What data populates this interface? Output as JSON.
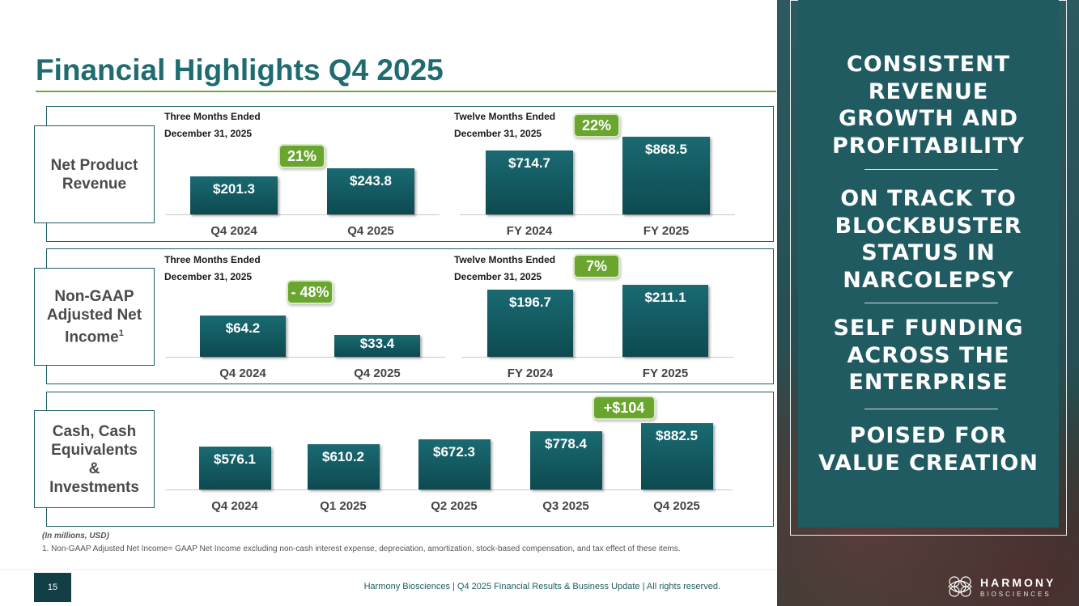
{
  "slide": {
    "title": "Financial Highlights Q4 2025",
    "page_number": "15",
    "footer": "Harmony Biosciences | Q4 2025 Financial Results & Business Update | All rights reserved.",
    "units_note": "(In millions, USD)",
    "footnote": "1. Non-GAAP Adjusted Net Income= GAAP Net Income excluding non-cash interest expense, depreciation, amortization, stock-based compensation, and tax effect of these items."
  },
  "rows": {
    "revenue": {
      "label": "Net Product Revenue"
    },
    "net_income": {
      "label": "Non-GAAP Adjusted Net Income",
      "sup": "1"
    },
    "cash": {
      "label": "Cash, Cash Equivalents & Investments"
    }
  },
  "periods": {
    "three_months_l1": "Three Months Ended",
    "three_months_l2": "December 31, 2025",
    "twelve_months_l1": "Twelve Months Ended",
    "twelve_months_l2": "December 31, 2025"
  },
  "sidebar": {
    "items": [
      "CONSISTENT REVENUE GROWTH AND PROFITABILITY",
      "ON TRACK TO BLOCKBUSTER STATUS IN NARCOLEPSY",
      "SELF FUNDING ACROSS THE ENTERPRISE",
      "POISED FOR VALUE CREATION"
    ]
  },
  "logo": {
    "name": "HARMONY",
    "sub": "BIOSCIENCES"
  },
  "colors": {
    "title": "#1f6b70",
    "bar": "#0f4f55",
    "badge": "#6aa52f",
    "sidebar": "#1f5b61"
  },
  "chart_data": [
    {
      "type": "bar",
      "panel": "Net Product Revenue - Three Months Ended",
      "categories": [
        "Q4 2024",
        "Q4 2025"
      ],
      "values": [
        201.3,
        243.8
      ],
      "labels": [
        "$201.3",
        "$243.8"
      ],
      "growth_label": "21%"
    },
    {
      "type": "bar",
      "panel": "Net Product Revenue - Twelve Months Ended",
      "categories": [
        "FY 2024",
        "FY 2025"
      ],
      "values": [
        714.7,
        868.5
      ],
      "labels": [
        "$714.7",
        "$868.5"
      ],
      "growth_label": "22%"
    },
    {
      "type": "bar",
      "panel": "Non-GAAP Adjusted Net Income - Three Months Ended",
      "categories": [
        "Q4 2024",
        "Q4 2025"
      ],
      "values": [
        64.2,
        33.4
      ],
      "labels": [
        "$64.2",
        "$33.4"
      ],
      "growth_label": "- 48%"
    },
    {
      "type": "bar",
      "panel": "Non-GAAP Adjusted Net Income - Twelve Months Ended",
      "categories": [
        "FY 2024",
        "FY 2025"
      ],
      "values": [
        196.7,
        211.1
      ],
      "labels": [
        "$196.7",
        "$211.1"
      ],
      "growth_label": "7%"
    },
    {
      "type": "bar",
      "panel": "Cash, Cash Equivalents & Investments",
      "categories": [
        "Q4 2024",
        "Q1 2025",
        "Q2 2025",
        "Q3 2025",
        "Q4 2025"
      ],
      "values": [
        576.1,
        610.2,
        672.3,
        778.4,
        882.5
      ],
      "labels": [
        "$576.1",
        "$610.2",
        "$672.3",
        "$778.4",
        "$882.5"
      ],
      "growth_label": "+$104"
    }
  ]
}
